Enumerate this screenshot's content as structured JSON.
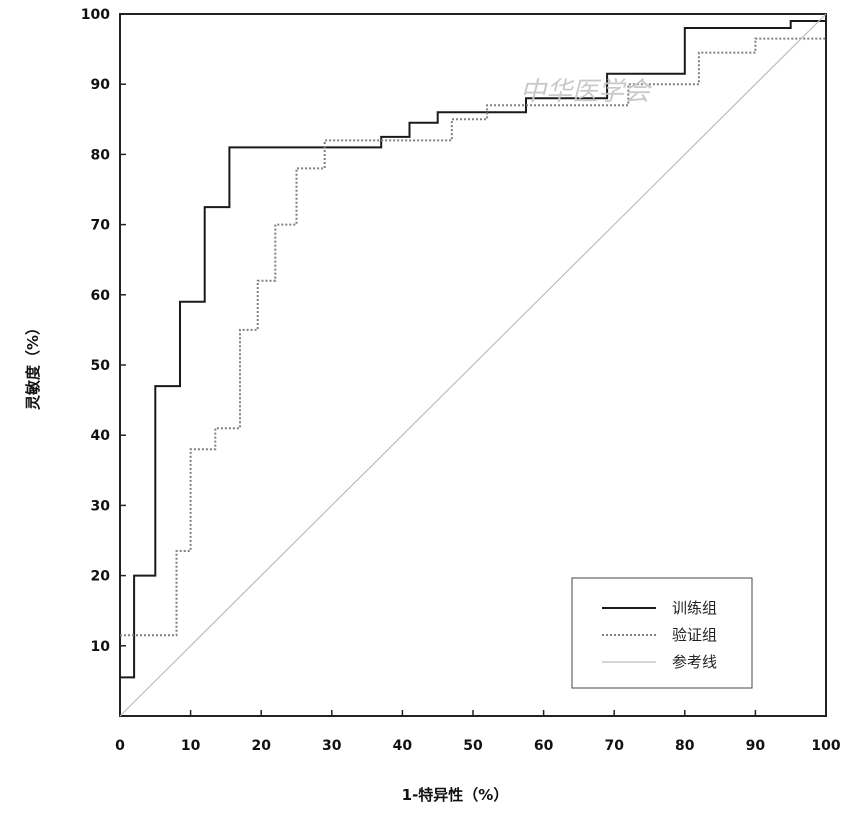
{
  "chart_data": {
    "type": "line",
    "title": "",
    "xlabel": "1-特异性（%）",
    "ylabel": "灵敏度（%）",
    "xlim": [
      0,
      100
    ],
    "ylim": [
      0,
      100
    ],
    "x_ticks": [
      "0",
      "10",
      "20",
      "30",
      "40",
      "50",
      "60",
      "70",
      "80",
      "90",
      "100"
    ],
    "y_ticks": [
      "10",
      "20",
      "30",
      "40",
      "50",
      "60",
      "70",
      "80",
      "90",
      "100"
    ],
    "grid": false,
    "legend_position": "bottom-right",
    "series": [
      {
        "name": "训练组",
        "color": "#1a1a1a",
        "style": "solid",
        "points": [
          [
            0,
            5.5
          ],
          [
            2,
            5.5
          ],
          [
            2,
            20
          ],
          [
            5,
            20
          ],
          [
            5,
            47
          ],
          [
            8.5,
            47
          ],
          [
            8.5,
            59
          ],
          [
            12,
            59
          ],
          [
            12,
            72.5
          ],
          [
            15.5,
            72.5
          ],
          [
            15.5,
            81
          ],
          [
            37,
            81
          ],
          [
            37,
            82.5
          ],
          [
            41,
            82.5
          ],
          [
            41,
            84.5
          ],
          [
            45,
            84.5
          ],
          [
            45,
            86
          ],
          [
            57.5,
            86
          ],
          [
            57.5,
            88
          ],
          [
            69,
            88
          ],
          [
            69,
            91.5
          ],
          [
            80,
            91.5
          ],
          [
            80,
            98
          ],
          [
            95,
            98
          ],
          [
            95,
            99
          ],
          [
            100,
            99
          ]
        ]
      },
      {
        "name": "验证组",
        "color": "#808080",
        "style": "dotted",
        "points": [
          [
            0,
            11.5
          ],
          [
            8,
            11.5
          ],
          [
            8,
            23.5
          ],
          [
            10,
            23.5
          ],
          [
            10,
            38
          ],
          [
            13.5,
            38
          ],
          [
            13.5,
            41
          ],
          [
            17,
            41
          ],
          [
            17,
            55
          ],
          [
            19.5,
            55
          ],
          [
            19.5,
            62
          ],
          [
            22,
            62
          ],
          [
            22,
            70
          ],
          [
            25,
            70
          ],
          [
            25,
            78
          ],
          [
            29,
            78
          ],
          [
            29,
            82
          ],
          [
            47,
            82
          ],
          [
            47,
            85
          ],
          [
            52,
            85
          ],
          [
            52,
            87
          ],
          [
            72,
            87
          ],
          [
            72,
            90
          ],
          [
            82,
            90
          ],
          [
            82,
            94.5
          ],
          [
            90,
            94.5
          ],
          [
            90,
            96.5
          ],
          [
            100,
            96.5
          ]
        ]
      },
      {
        "name": "参考线",
        "color": "#bdbdbd",
        "style": "solid",
        "points": [
          [
            0,
            0
          ],
          [
            100,
            100
          ]
        ]
      }
    ],
    "watermark": "中华医学会"
  }
}
